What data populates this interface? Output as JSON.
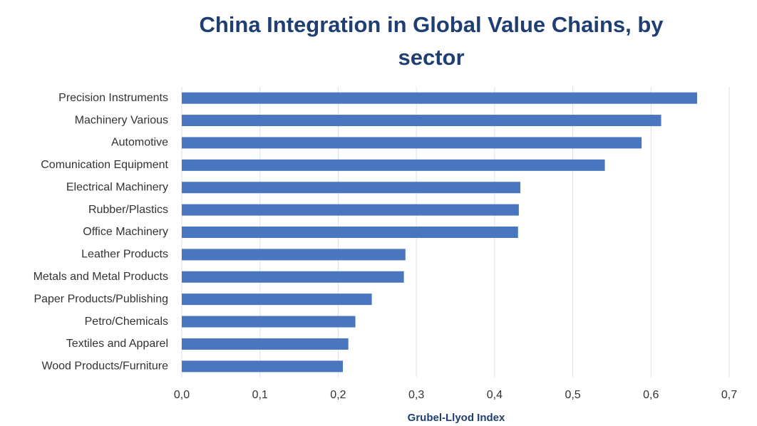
{
  "chart_data": {
    "type": "bar",
    "orientation": "horizontal",
    "title": "China Integration in Global Value Chains, by sector",
    "x_label": "Grubel-Llyod Index",
    "categories": [
      "Precision Instruments",
      "Machinery Various",
      "Automotive",
      "Comunication Equipment",
      "Electrical Machinery",
      "Rubber/Plastics",
      "Office Machinery",
      "Leather Products",
      "Metals and Metal Products",
      "Paper Products/Publishing",
      "Petro/Chemicals",
      "Textiles and Apparel",
      "Wood Products/Furniture"
    ],
    "values": [
      0.659,
      0.613,
      0.588,
      0.541,
      0.433,
      0.431,
      0.43,
      0.286,
      0.284,
      0.243,
      0.222,
      0.213,
      0.206
    ],
    "color": "#4a76c0",
    "xlim": [
      0,
      0.7
    ],
    "xticks": [
      {
        "value": 0,
        "label": "0,0"
      },
      {
        "value": 0.1,
        "label": "0,1"
      },
      {
        "value": 0.2,
        "label": "0,2"
      },
      {
        "value": 0.3,
        "label": "0,3"
      },
      {
        "value": 0.4,
        "label": "0,4"
      },
      {
        "value": 0.5,
        "label": "0,5"
      },
      {
        "value": 0.6,
        "label": "0,6"
      },
      {
        "value": 0.7,
        "label": "0,7"
      }
    ],
    "grid": true
  }
}
